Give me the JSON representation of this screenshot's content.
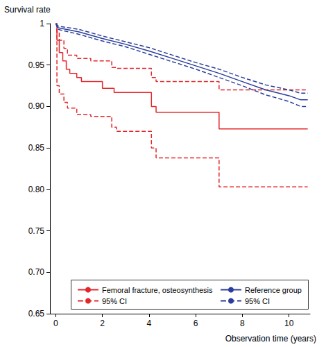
{
  "chart_data": {
    "type": "line",
    "xlabel": "Observation time (years)",
    "ylabel": "Survival rate",
    "xlim": [
      -0.25,
      10.9
    ],
    "xticks": [
      0,
      2,
      4,
      6,
      8,
      10
    ],
    "ylim": [
      0.65,
      1
    ],
    "yticks": [
      {
        "value": 0.65,
        "label": "0.65"
      },
      {
        "value": 0.7,
        "label": "0.70"
      },
      {
        "value": 0.75,
        "label": "0.75"
      },
      {
        "value": 0.8,
        "label": "0.80"
      },
      {
        "value": 0.85,
        "label": "0.85"
      },
      {
        "value": 0.9,
        "label": "0.90"
      },
      {
        "value": 0.95,
        "label": "0.95"
      },
      1
    ],
    "grid": false,
    "legend": "lower left",
    "series": [
      {
        "name": "Femoral fracture, osteosynthesis",
        "color": "#e3262b",
        "type": "step",
        "line_style": "solid",
        "x": [
          0,
          0.05,
          0.15,
          0.3,
          0.45,
          0.6,
          0.9,
          1.1,
          2.0,
          2.5,
          4.1,
          4.3,
          7.0,
          10.8
        ],
        "values": [
          1,
          0.98,
          0.965,
          0.955,
          0.945,
          0.94,
          0.935,
          0.93,
          0.922,
          0.917,
          0.9,
          0.893,
          0.873,
          0.873
        ]
      },
      {
        "name": "95% CI",
        "color": "#e3262b",
        "type": "step",
        "line_style": "dashed",
        "x": [
          0,
          0.05,
          0.15,
          0.35,
          0.5,
          0.9,
          1.5,
          2.4,
          2.6,
          4.1,
          4.3,
          7.0,
          10.8
        ],
        "lower": [
          1,
          0.925,
          0.915,
          0.905,
          0.898,
          0.89,
          0.888,
          0.875,
          0.87,
          0.85,
          0.838,
          0.803,
          0.803
        ],
        "upper": [
          1,
          0.99,
          0.98,
          0.97,
          0.962,
          0.958,
          0.955,
          0.947,
          0.946,
          0.935,
          0.93,
          0.92,
          0.92
        ]
      },
      {
        "name": "Reference group",
        "color": "#2a3d9a",
        "type": "line",
        "line_style": "solid",
        "x": [
          0,
          0.1,
          1,
          2,
          3,
          4,
          5,
          6,
          7,
          8,
          9,
          10,
          10.5,
          10.8
        ],
        "values": [
          1,
          0.995,
          0.99,
          0.982,
          0.975,
          0.967,
          0.958,
          0.949,
          0.94,
          0.93,
          0.92,
          0.913,
          0.908,
          0.908
        ]
      },
      {
        "name": "95% CI",
        "color": "#2a3d9a",
        "type": "line",
        "line_style": "dashed",
        "x": [
          0,
          0.1,
          1,
          2,
          3,
          4,
          5,
          6,
          7,
          8,
          9,
          10,
          10.5,
          10.8
        ],
        "lower": [
          1,
          0.993,
          0.987,
          0.979,
          0.972,
          0.963,
          0.954,
          0.945,
          0.935,
          0.925,
          0.914,
          0.906,
          0.9,
          0.9
        ],
        "upper": [
          1,
          0.997,
          0.993,
          0.985,
          0.978,
          0.971,
          0.962,
          0.953,
          0.945,
          0.935,
          0.926,
          0.92,
          0.916,
          0.916
        ]
      }
    ]
  }
}
